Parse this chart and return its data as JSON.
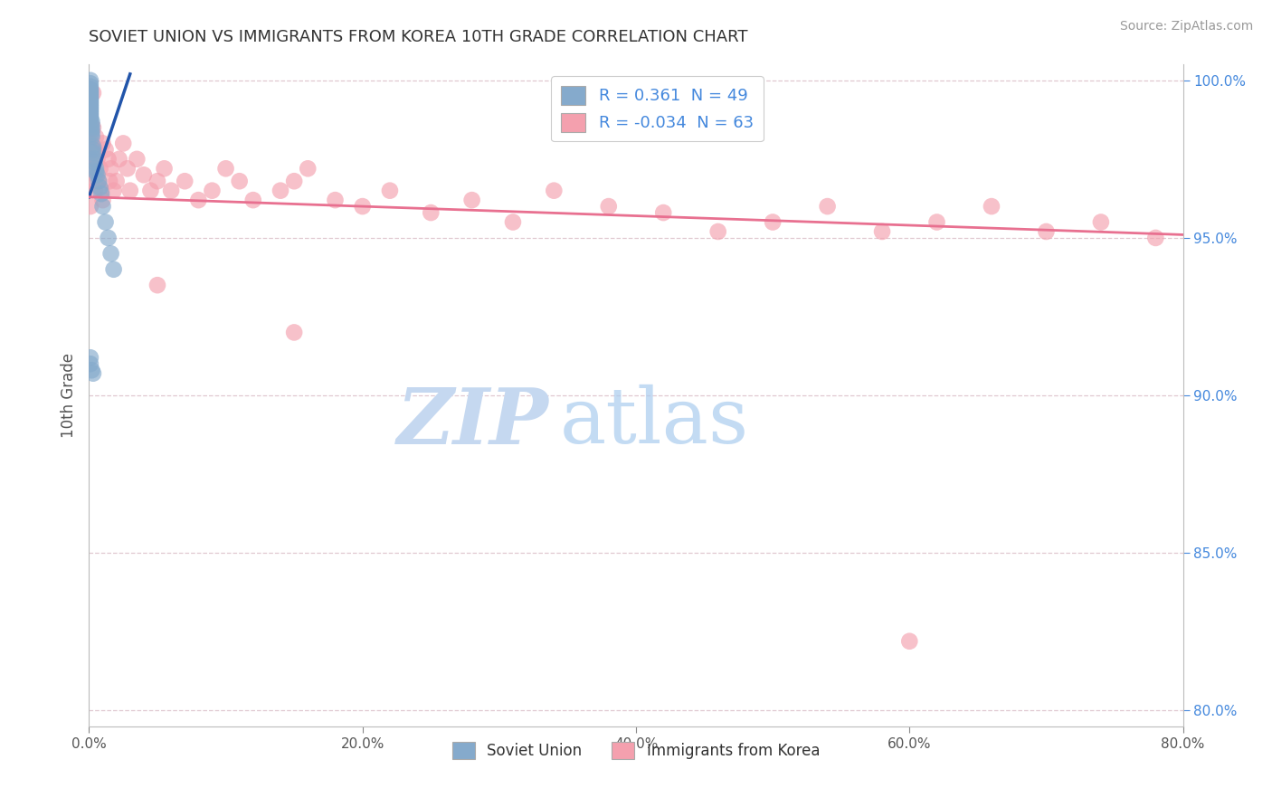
{
  "title": "SOVIET UNION VS IMMIGRANTS FROM KOREA 10TH GRADE CORRELATION CHART",
  "source_text": "Source: ZipAtlas.com",
  "ylabel": "10th Grade",
  "xlim": [
    0.0,
    0.8
  ],
  "ylim": [
    0.795,
    1.005
  ],
  "xtick_labels": [
    "0.0%",
    "20.0%",
    "40.0%",
    "60.0%",
    "80.0%"
  ],
  "xtick_vals": [
    0.0,
    0.2,
    0.4,
    0.6,
    0.8
  ],
  "right_ytick_labels": [
    "100.0%",
    "95.0%",
    "90.0%",
    "85.0%",
    "80.0%"
  ],
  "right_ytick_vals": [
    1.0,
    0.95,
    0.9,
    0.85,
    0.8
  ],
  "blue_color": "#85AACC",
  "pink_color": "#F4A0AE",
  "blue_line_color": "#2255AA",
  "pink_line_color": "#E87090",
  "background_color": "#FFFFFF",
  "watermark_zip": "ZIP",
  "watermark_atlas": "atlas",
  "legend_R1": " 0.361",
  "legend_N1": "49",
  "legend_R2": "-0.034",
  "legend_N2": "63",
  "legend_label1": "Soviet Union",
  "legend_label2": "Immigrants from Korea",
  "soviet_x": [
    0.001,
    0.001,
    0.001,
    0.001,
    0.001,
    0.001,
    0.001,
    0.001,
    0.001,
    0.001,
    0.001,
    0.001,
    0.001,
    0.001,
    0.001,
    0.001,
    0.001,
    0.001,
    0.001,
    0.001,
    0.001,
    0.001,
    0.001,
    0.002,
    0.002,
    0.002,
    0.002,
    0.002,
    0.002,
    0.003,
    0.003,
    0.003,
    0.004,
    0.004,
    0.005,
    0.005,
    0.006,
    0.007,
    0.008,
    0.009,
    0.01,
    0.012,
    0.014,
    0.016,
    0.018,
    0.001,
    0.001,
    0.002,
    0.003
  ],
  "soviet_y": [
    1.0,
    0.999,
    0.998,
    0.997,
    0.997,
    0.996,
    0.996,
    0.995,
    0.995,
    0.994,
    0.994,
    0.993,
    0.993,
    0.992,
    0.992,
    0.991,
    0.991,
    0.99,
    0.99,
    0.989,
    0.989,
    0.988,
    0.988,
    0.987,
    0.986,
    0.985,
    0.984,
    0.983,
    0.982,
    0.979,
    0.978,
    0.977,
    0.975,
    0.974,
    0.972,
    0.971,
    0.97,
    0.968,
    0.966,
    0.964,
    0.96,
    0.955,
    0.95,
    0.945,
    0.94,
    0.912,
    0.91,
    0.908,
    0.907
  ],
  "korea_x": [
    0.001,
    0.001,
    0.002,
    0.002,
    0.003,
    0.003,
    0.004,
    0.004,
    0.005,
    0.005,
    0.006,
    0.007,
    0.008,
    0.009,
    0.01,
    0.01,
    0.012,
    0.014,
    0.015,
    0.016,
    0.018,
    0.02,
    0.022,
    0.025,
    0.028,
    0.03,
    0.035,
    0.04,
    0.045,
    0.05,
    0.055,
    0.06,
    0.07,
    0.08,
    0.09,
    0.1,
    0.11,
    0.12,
    0.14,
    0.15,
    0.16,
    0.18,
    0.2,
    0.22,
    0.25,
    0.28,
    0.31,
    0.34,
    0.38,
    0.42,
    0.46,
    0.5,
    0.54,
    0.58,
    0.62,
    0.66,
    0.7,
    0.74,
    0.78,
    0.05,
    0.15,
    0.6,
    0.003
  ],
  "korea_y": [
    0.975,
    0.96,
    0.98,
    0.968,
    0.985,
    0.972,
    0.978,
    0.965,
    0.982,
    0.97,
    0.975,
    0.968,
    0.972,
    0.965,
    0.98,
    0.962,
    0.978,
    0.975,
    0.968,
    0.972,
    0.965,
    0.968,
    0.975,
    0.98,
    0.972,
    0.965,
    0.975,
    0.97,
    0.965,
    0.968,
    0.972,
    0.965,
    0.968,
    0.962,
    0.965,
    0.972,
    0.968,
    0.962,
    0.965,
    0.968,
    0.972,
    0.962,
    0.96,
    0.965,
    0.958,
    0.962,
    0.955,
    0.965,
    0.96,
    0.958,
    0.952,
    0.955,
    0.96,
    0.952,
    0.955,
    0.96,
    0.952,
    0.955,
    0.95,
    0.935,
    0.92,
    0.822,
    0.996
  ]
}
